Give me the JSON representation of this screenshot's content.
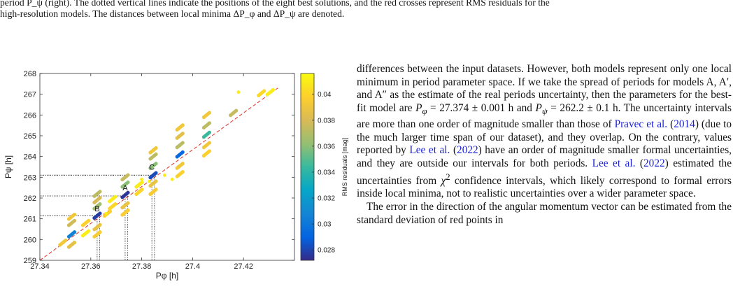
{
  "caption": {
    "line1": "period P_ψ (right). The dotted vertical lines indicate the positions of the eight best solutions, and the red crosses represent RMS residuals for the",
    "line2": "high-resolution models. The distances between local minima ΔP_φ and ΔP_ψ are denoted."
  },
  "chart_data": {
    "type": "scatter",
    "xlabel": "Pφ [h]",
    "ylabel": "Pψ [h]",
    "xlim": [
      27.34,
      27.44
    ],
    "ylim": [
      259,
      268
    ],
    "xticks": [
      "27.34",
      "27.36",
      "27.38",
      "27.4",
      "27.42"
    ],
    "yticks": [
      "259",
      "260",
      "261",
      "262",
      "263",
      "264",
      "265",
      "266",
      "267",
      "268"
    ],
    "colorbar": {
      "label": "RMS residuals [mag]",
      "range": [
        0.0272,
        0.0416
      ],
      "ticks": [
        "0.028",
        "0.03",
        "0.032",
        "0.034",
        "0.036",
        "0.038",
        "0.04"
      ]
    },
    "annotations": [
      {
        "text": "A",
        "x": 27.3735,
        "y": 262.3
      },
      {
        "text": "B",
        "x": 27.3625,
        "y": 261.3
      },
      {
        "text": "C",
        "x": 27.384,
        "y": 263.3
      }
    ],
    "diagonal": {
      "x": [
        27.34,
        27.4335
      ],
      "y": [
        259,
        267.3
      ],
      "color": "#e0302a"
    },
    "best_solutions": [
      {
        "x": 27.3625,
        "y": 261.15
      },
      {
        "x": 27.3635,
        "y": 261.15
      },
      {
        "x": 27.3735,
        "y": 262.1
      },
      {
        "x": 27.3745,
        "y": 262.1
      },
      {
        "x": 27.384,
        "y": 263.1
      },
      {
        "x": 27.385,
        "y": 263.1
      }
    ],
    "clusters": [
      {
        "x": 27.349,
        "y": 259.85,
        "rms": 0.0392
      },
      {
        "x": 27.3525,
        "y": 260.25,
        "rms": 0.0305
      },
      {
        "x": 27.3525,
        "y": 259.75,
        "rms": 0.0386
      },
      {
        "x": 27.3525,
        "y": 260.8,
        "rms": 0.0378
      },
      {
        "x": 27.3525,
        "y": 261.1,
        "rms": 0.0392
      },
      {
        "x": 27.358,
        "y": 260.8,
        "rms": 0.0398
      },
      {
        "x": 27.358,
        "y": 260.3,
        "rms": 0.041
      },
      {
        "x": 27.3625,
        "y": 261.15,
        "rms": 0.0278
      },
      {
        "x": 27.3625,
        "y": 261.6,
        "rms": 0.0365
      },
      {
        "x": 27.3625,
        "y": 261.9,
        "rms": 0.038
      },
      {
        "x": 27.3625,
        "y": 262.2,
        "rms": 0.0372
      },
      {
        "x": 27.3625,
        "y": 260.6,
        "rms": 0.0388
      },
      {
        "x": 27.3625,
        "y": 260.25,
        "rms": 0.0396
      },
      {
        "x": 27.3665,
        "y": 261.25,
        "rms": 0.0398
      },
      {
        "x": 27.3685,
        "y": 261.6,
        "rms": 0.04
      },
      {
        "x": 27.3685,
        "y": 261.95,
        "rms": 0.041
      },
      {
        "x": 27.3735,
        "y": 262.15,
        "rms": 0.0275
      },
      {
        "x": 27.3735,
        "y": 262.65,
        "rms": 0.036
      },
      {
        "x": 27.3735,
        "y": 263.0,
        "rms": 0.0375
      },
      {
        "x": 27.3735,
        "y": 261.65,
        "rms": 0.0388
      },
      {
        "x": 27.3735,
        "y": 261.3,
        "rms": 0.0396
      },
      {
        "x": 27.379,
        "y": 262.3,
        "rms": 0.04
      },
      {
        "x": 27.379,
        "y": 262.65,
        "rms": 0.041
      },
      {
        "x": 27.3845,
        "y": 263.1,
        "rms": 0.0282
      },
      {
        "x": 27.3845,
        "y": 263.55,
        "rms": 0.036
      },
      {
        "x": 27.3845,
        "y": 264.0,
        "rms": 0.0372
      },
      {
        "x": 27.3845,
        "y": 262.7,
        "rms": 0.0388
      },
      {
        "x": 27.3845,
        "y": 262.3,
        "rms": 0.0395
      },
      {
        "x": 27.3845,
        "y": 264.3,
        "rms": 0.0392
      },
      {
        "x": 27.395,
        "y": 264.1,
        "rms": 0.0292
      },
      {
        "x": 27.395,
        "y": 264.55,
        "rms": 0.0372
      },
      {
        "x": 27.395,
        "y": 265.0,
        "rms": 0.0385
      },
      {
        "x": 27.395,
        "y": 265.4,
        "rms": 0.0392
      },
      {
        "x": 27.395,
        "y": 263.55,
        "rms": 0.0392
      },
      {
        "x": 27.395,
        "y": 263.15,
        "rms": 0.0398
      },
      {
        "x": 27.4055,
        "y": 265.05,
        "rms": 0.0345
      },
      {
        "x": 27.4055,
        "y": 265.5,
        "rms": 0.0372
      },
      {
        "x": 27.4055,
        "y": 266.0,
        "rms": 0.0392
      },
      {
        "x": 27.4055,
        "y": 264.55,
        "rms": 0.0392
      },
      {
        "x": 27.4055,
        "y": 264.15,
        "rms": 0.0398
      },
      {
        "x": 27.416,
        "y": 266.1,
        "rms": 0.0375
      },
      {
        "x": 27.427,
        "y": 267.05,
        "rms": 0.0402
      },
      {
        "x": 27.4305,
        "y": 267.1,
        "rms": 0.041
      }
    ],
    "points": [
      {
        "x": 27.366,
        "y": 261.25,
        "rms": 0.041
      },
      {
        "x": 27.357,
        "y": 260.2,
        "rms": 0.041
      },
      {
        "x": 27.38,
        "y": 262.9,
        "rms": 0.041
      },
      {
        "x": 27.389,
        "y": 263.1,
        "rms": 0.041
      },
      {
        "x": 27.392,
        "y": 262.9,
        "rms": 0.041
      },
      {
        "x": 27.383,
        "y": 262.8,
        "rms": 0.041
      },
      {
        "x": 27.418,
        "y": 267.1,
        "rms": 0.041
      }
    ]
  },
  "text": {
    "p1": {
      "t1": "differences between the input datasets. However, both models represent only one local minimum in period parameter space. If we take the spread of periods for models A, A′, and A″ as the estimate of the real periods uncertainty, then the parameters for the best-fit model are ",
      "m1": "P",
      "s1": "φ",
      "t2": " = 27.374 ± 0.001 h and ",
      "m2": "P",
      "s2": "ψ",
      "t3": " = 262.2 ± 0.1 h. The uncertainty intervals are more than one order of magnitude smaller than those of ",
      "c1": "Pravec et al.",
      "t4": " (",
      "c1y": "2014",
      "t5": ") (due to the much larger time span of our dataset), and they overlap. On the contrary, values reported by ",
      "c2": "Lee et al.",
      "t6": " (",
      "c2y": "2022",
      "t7": ") have an order of magnitude smaller formal uncertainties, and they are outside our intervals for both periods. ",
      "c3": "Lee et al.",
      "t8": " (",
      "c3y": "2022",
      "t9": ") estimated the uncertainties from ",
      "m3": "χ",
      "t10": "2",
      "t11": " confidence intervals, which likely correspond to formal errors inside local minima, not to realistic uncertainties over a wider parameter space."
    },
    "p2": "The error in the direction of the angular momentum vector can be estimated from the standard deviation of red points in"
  }
}
